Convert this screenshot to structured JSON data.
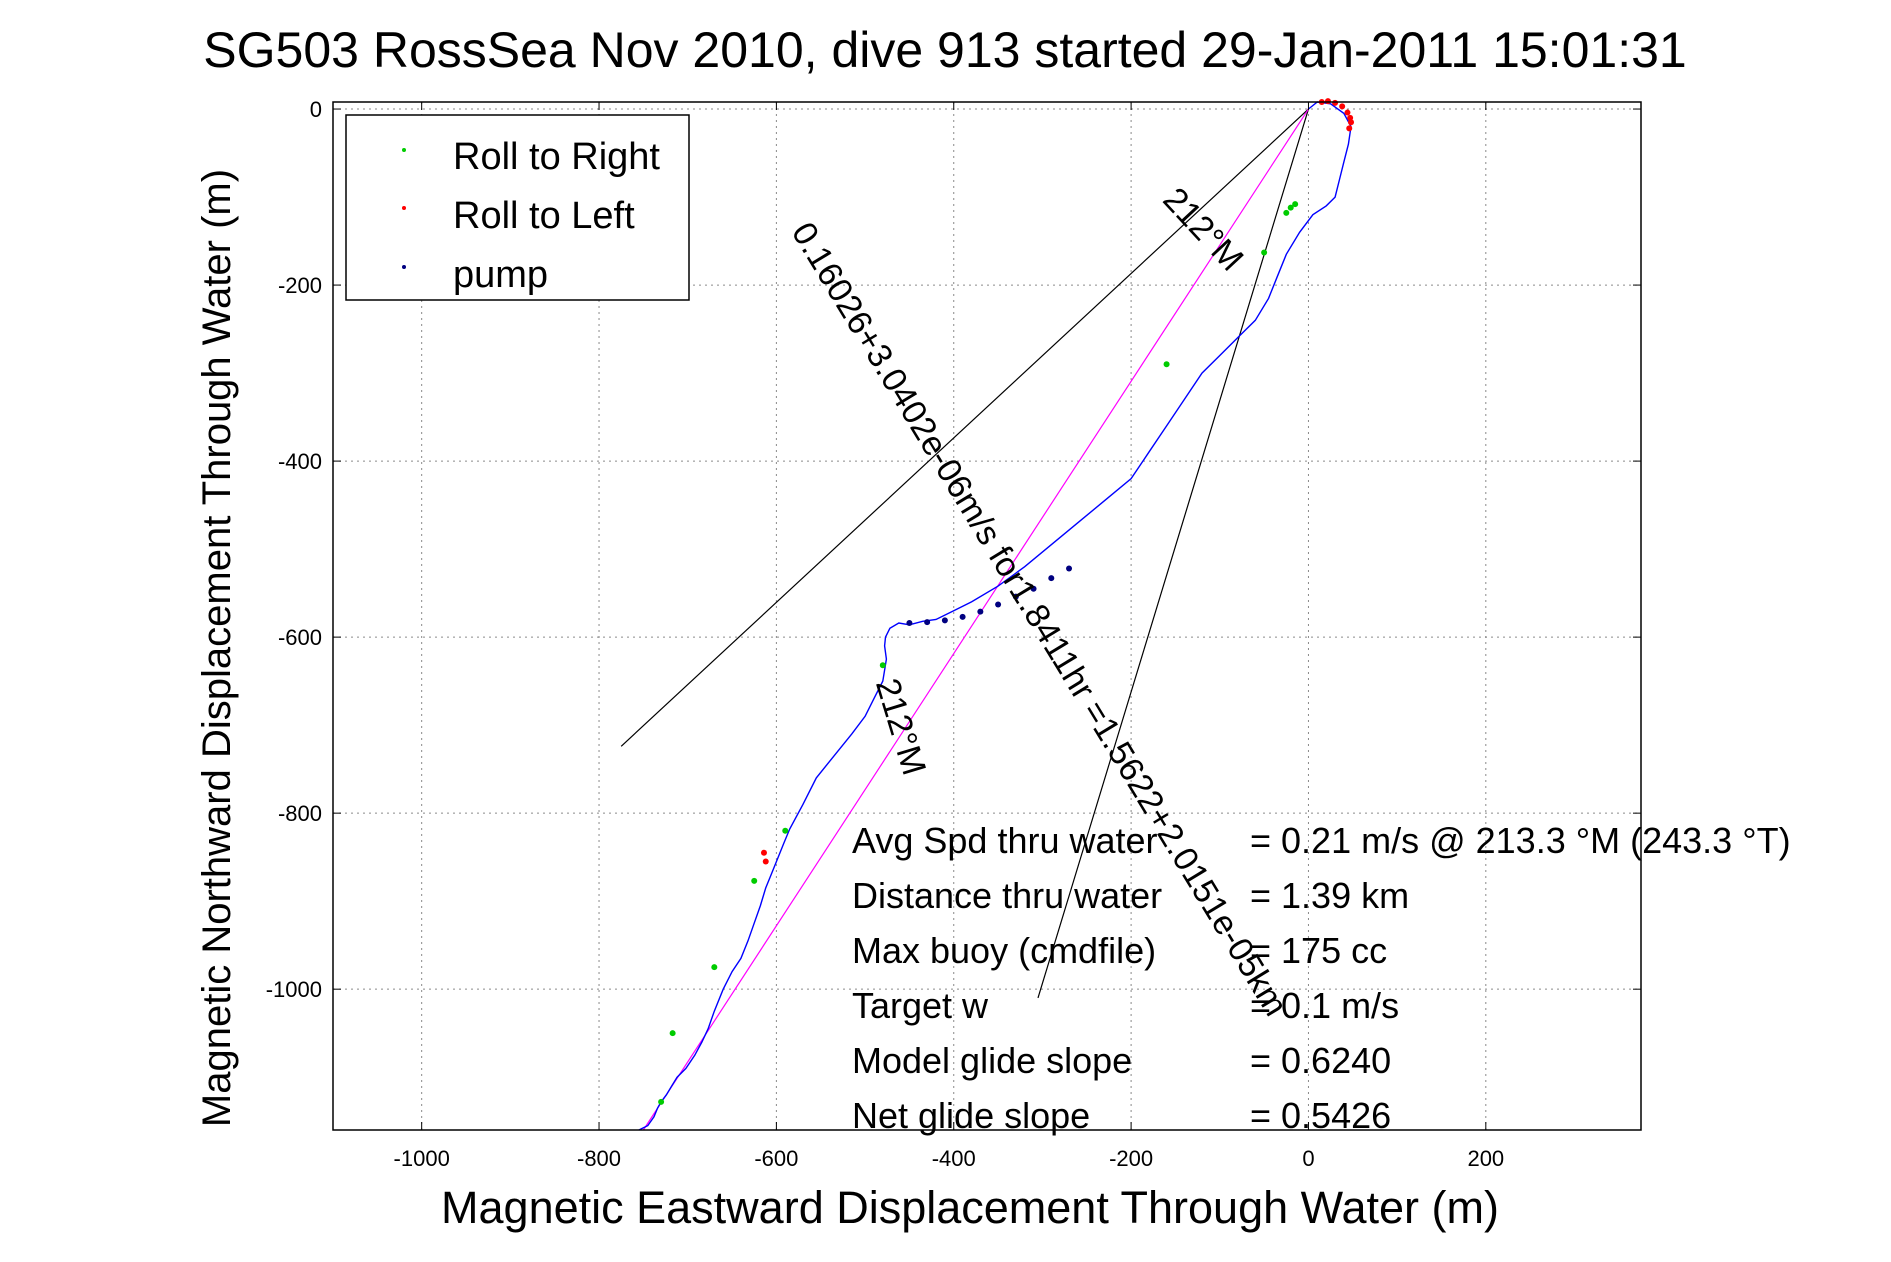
{
  "colors": {
    "track": "#0000ff",
    "roll_right": "#00cc00",
    "roll_left": "#ff0000",
    "pump": "#000080",
    "heading_line": "#ff00ff",
    "lines": "#000000",
    "grid": "#8a8a8a"
  },
  "chart_data": {
    "type": "line",
    "title": "SG503 RossSea Nov 2010, dive 913 started 29-Jan-2011 15:01:31",
    "xlabel": "Magnetic Eastward Displacement Through Water (m)",
    "ylabel": "Magnetic Northward Displacement Through Water (m)",
    "xlim": [
      -1100,
      375
    ],
    "ylim": [
      -1160,
      8
    ],
    "x_ticks": [
      -1000,
      -800,
      -600,
      -400,
      -200,
      0,
      200
    ],
    "x_tick_labels": [
      "-1000",
      "-800",
      "-600",
      "-400",
      "-200",
      "0",
      "200"
    ],
    "y_ticks": [
      0,
      -200,
      -400,
      -600,
      -800,
      -1000
    ],
    "y_tick_labels": [
      "0",
      "-200",
      "-400",
      "-600",
      "-800",
      "-1000"
    ],
    "grid": true,
    "legend": {
      "placement": "top-left",
      "entries": [
        "Roll to Right",
        "Roll to Left",
        "pump"
      ]
    },
    "series": [
      {
        "name": "track",
        "x": [
          0,
          10,
          25,
          40,
          48,
          45,
          40,
          35,
          30,
          20,
          5,
          -10,
          -25,
          -35,
          -45,
          -60,
          -80,
          -100,
          -120,
          -140,
          -160,
          -180,
          -200,
          -230,
          -260,
          -290,
          -320,
          -350,
          -380,
          -400,
          -420,
          -435,
          -450,
          -462,
          -472,
          -477,
          -478,
          -476,
          -480,
          -490,
          -500,
          -515,
          -535,
          -555,
          -570,
          -585,
          -592,
          -600,
          -606,
          -612,
          -618,
          -625,
          -632,
          -640,
          -650,
          -660,
          -670,
          -677,
          -684,
          -692,
          -702,
          -712,
          -718,
          -724,
          -730,
          -734,
          -738,
          -745,
          -755
        ],
        "y": [
          0,
          8,
          6,
          -5,
          -20,
          -40,
          -60,
          -80,
          -100,
          -110,
          -120,
          -140,
          -165,
          -190,
          -215,
          -240,
          -260,
          -280,
          -300,
          -330,
          -360,
          -390,
          -420,
          -445,
          -470,
          -495,
          -520,
          -542,
          -560,
          -570,
          -580,
          -582,
          -586,
          -584,
          -590,
          -600,
          -610,
          -625,
          -650,
          -670,
          -690,
          -710,
          -735,
          -760,
          -790,
          -818,
          -835,
          -855,
          -870,
          -885,
          -905,
          -925,
          -945,
          -965,
          -980,
          -1000,
          -1025,
          -1045,
          -1060,
          -1075,
          -1090,
          -1100,
          -1110,
          -1120,
          -1128,
          -1135,
          -1145,
          -1155,
          -1160
        ]
      },
      {
        "name": "Roll to Right",
        "x": [
          -15,
          -20,
          -25,
          -50,
          -160,
          -480,
          -590,
          -625,
          -670,
          -717,
          -730
        ],
        "y": [
          -108,
          -112,
          -118,
          -163,
          -290,
          -632,
          -820,
          -877,
          -975,
          -1050,
          -1128
        ]
      },
      {
        "name": "Roll to Left",
        "x": [
          15,
          22,
          30,
          38,
          44,
          47,
          48,
          46,
          -614,
          -612
        ],
        "y": [
          8,
          9,
          7,
          3,
          -4,
          -10,
          -15,
          -22,
          -845,
          -855
        ]
      },
      {
        "name": "pump",
        "x": [
          -450,
          -430,
          -410,
          -390,
          -370,
          -350,
          -330,
          -310,
          -290,
          -270
        ],
        "y": [
          -584,
          -583,
          -581,
          -577,
          -571,
          -563,
          -554,
          -545,
          -533,
          -522
        ]
      }
    ],
    "heading_line": {
      "x": [
        0,
        -750
      ],
      "y": [
        0,
        -1160
      ]
    },
    "cone_lines": [
      {
        "x": [
          0,
          -775
        ],
        "y": [
          0,
          -724
        ]
      },
      {
        "x": [
          0,
          -305
        ],
        "y": [
          0,
          -1010
        ]
      }
    ],
    "rotated_labels": [
      "0.16026+3.0402e-06m/s for1.8411hr =1.5622+2.0151e-05km",
      "212°M",
      "212°M"
    ],
    "annotations": [
      {
        "label": "Avg Spd thru water",
        "value": "=  0.21 m/s @ 213.3 °M (243.3 °T)"
      },
      {
        "label": "Distance thru water",
        "value": "=  1.39 km"
      },
      {
        "label": "Max buoy (cmdfile)",
        "value": "= 175 cc"
      },
      {
        "label": "Target w",
        "value": "= 0.1 m/s"
      },
      {
        "label": "Model glide slope",
        "value": "= 0.6240"
      },
      {
        "label": "Net glide slope",
        "value": "= 0.5426"
      }
    ]
  }
}
